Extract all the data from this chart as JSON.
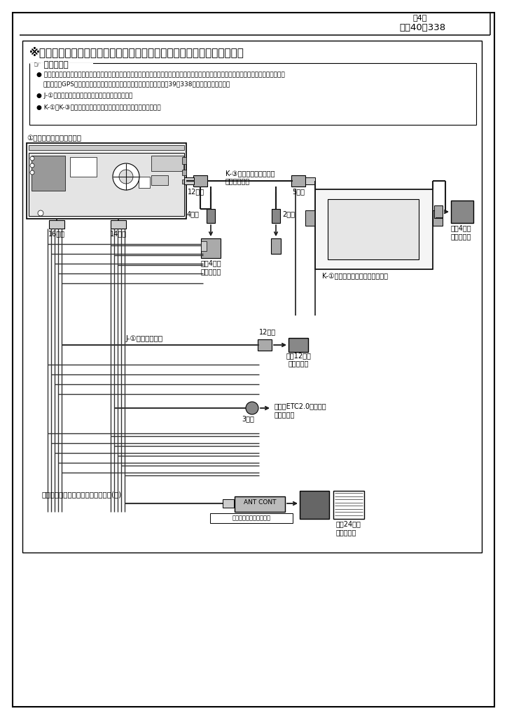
{
  "page_header": "第4版",
  "page_number": "頁　40／338",
  "main_title": "※ナビレディ用電源ハーネスおよびカメラコントローラキットの接続方法",
  "advice_title": "アドバイス",
  "advice_b1a": "ココではハスラーの全方位モニター付き車に別売のナビレディ用電源ハーネスおよび別売のカメラコントローラキットの接続方法のみを記載し",
  "advice_b1b": "ています。GPSアンテナや地上デジタルアンテナコード等については貴39／338を参照してください。",
  "advice_b2": "J-①は、ナビレディ用電源ハーネスの同桁品です。",
  "advice_b3": "K-①～K-③は、別売品カメラコントローラキットの同桁品です。",
  "navi_unit_label": "①ナビゲーションユニット",
  "l_16pin": "16ピン",
  "l_14pin": "14ピン",
  "l_12pin_top": "12ピン",
  "l_5pin": "5ピン",
  "l_4pin": "4ピン",
  "l_2pin": "2ピン",
  "l_12pin_mid": "12ピン",
  "l_3pin": "3ピン",
  "l_k3_l1": "K-③カメラコントローラ",
  "l_k3_l2": "変換ハーネス",
  "l_car4pin_l1": "車世4ピン",
  "l_car4pin_l2": "コネクター",
  "l_car4pin_r1": "車世4ピン",
  "l_car4pin_r2": "コネクター",
  "l_k1_box": "K-①カメラコントローラボックス",
  "l_j1_cable": "J-①電源ケーブル",
  "l_car12pin_1": "車世12ピン",
  "l_car12pin_2": "コネクター",
  "l_etc_1": "別売のETC2.0車載器を",
  "l_etc_2": "接続する。",
  "l_antenna": "オートアンテナコントロールコード(青)",
  "l_ant_cont": "ANT CONT",
  "l_remove": "取り外さないでください",
  "l_car24pin_1": "車世24ピン",
  "l_car24pin_2": "コネクター"
}
